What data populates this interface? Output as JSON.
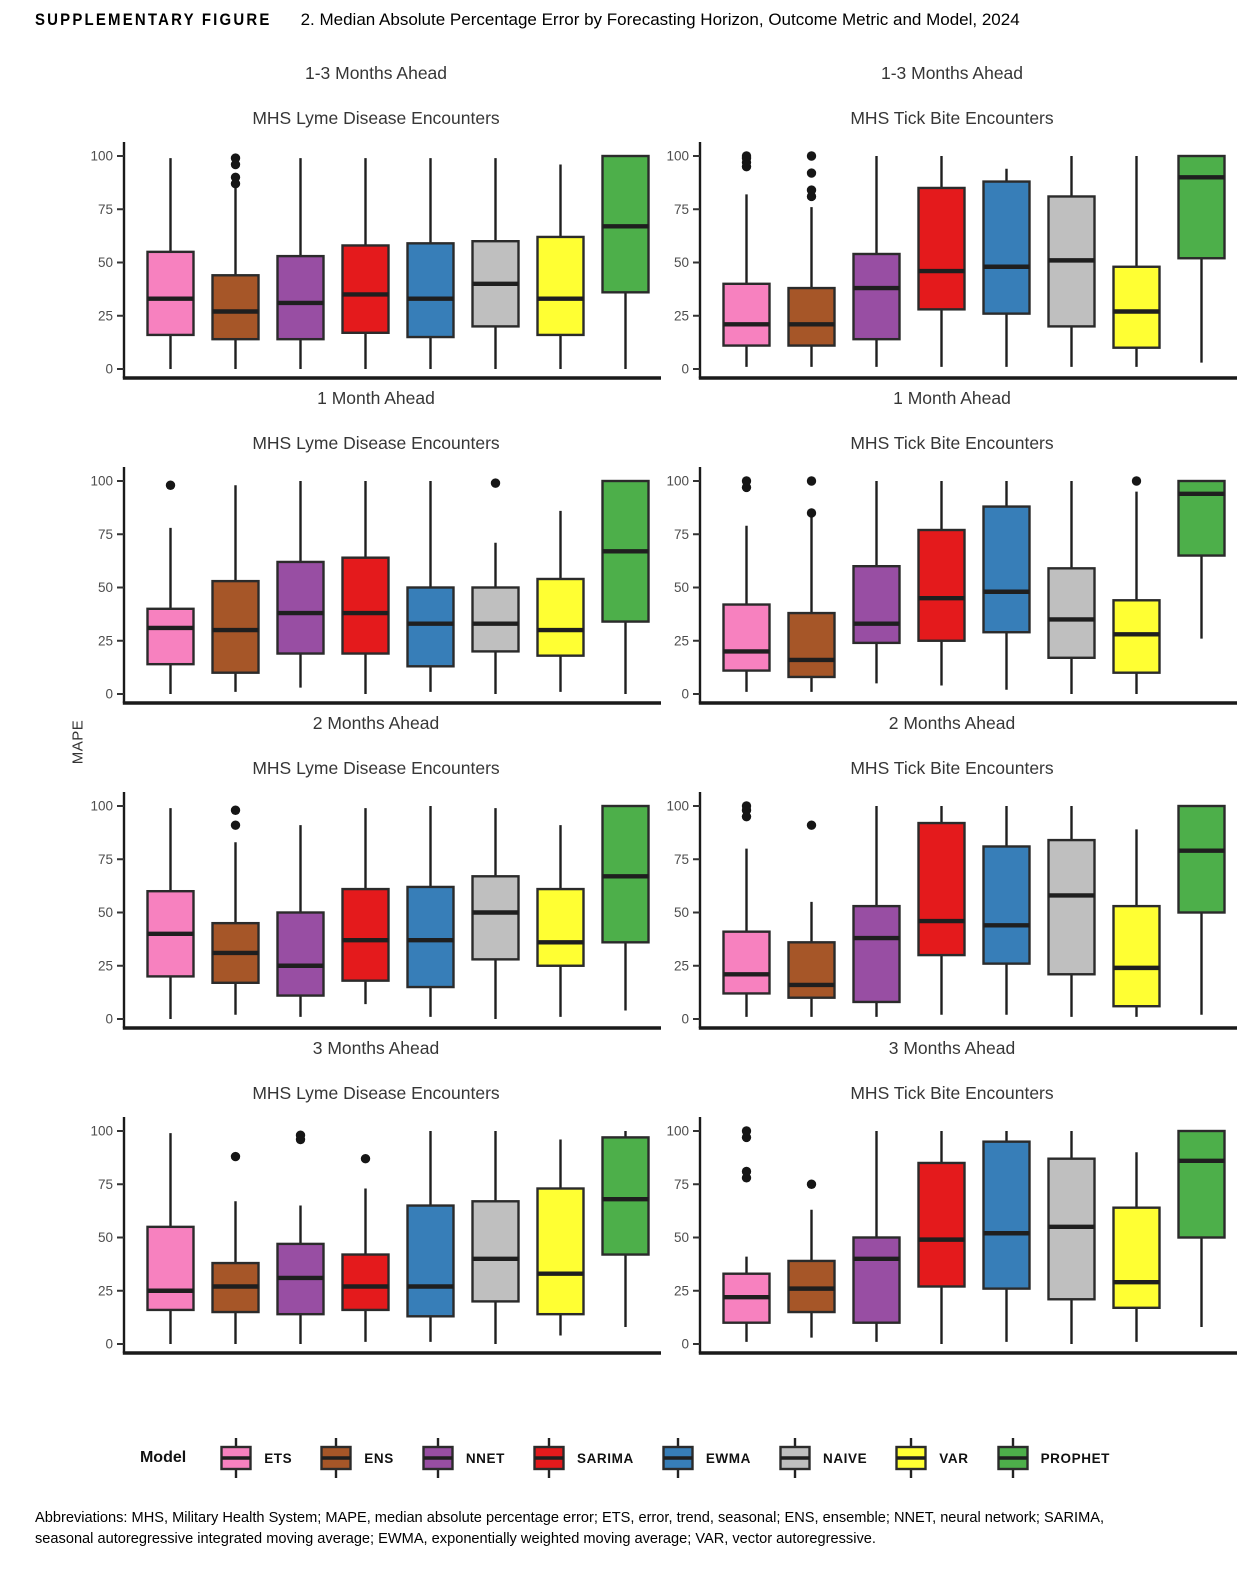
{
  "figure_title": {
    "label": "SUPPLEMENTARY FIGURE",
    "number": "2.",
    "text": "Median Absolute Percentage Error by Forecasting Horizon, Outcome Metric and Model, 2024"
  },
  "y_axis_label": "MAPE",
  "legend": {
    "title": "Model",
    "models": [
      {
        "name": "ETS",
        "color": "#F781BF"
      },
      {
        "name": "ENS",
        "color": "#A65628"
      },
      {
        "name": "NNET",
        "color": "#984EA3"
      },
      {
        "name": "SARIMA",
        "color": "#E41A1C"
      },
      {
        "name": "EWMA",
        "color": "#377EB8"
      },
      {
        "name": "NAIVE",
        "color": "#BFBFBF"
      },
      {
        "name": "VAR",
        "color": "#FFFF33"
      },
      {
        "name": "PROPHET",
        "color": "#4DAF4A"
      }
    ]
  },
  "footnote": {
    "line1": "Abbreviations: MHS, Military Health System; MAPE, median absolute percentage error; ETS, error, trend, seasonal; ENS, ensemble; NNET, neural network; SARIMA,",
    "line2": "seasonal autoregressive integrated moving average; EWMA, exponentially weighted moving average; VAR, vector autoregressive."
  },
  "chart_data": [
    {
      "type": "box",
      "horizon": "1-3 Months Ahead",
      "metric": "MHS Lyme Disease Encounters",
      "ylabel": "MAPE",
      "ylim": [
        0,
        100
      ],
      "yticks": [
        0,
        25,
        50,
        75,
        100
      ],
      "boxes": [
        {
          "model": "ETS",
          "whislo": 0,
          "q1": 16,
          "med": 33,
          "q3": 55,
          "whishi": 99,
          "outliers": []
        },
        {
          "model": "ENS",
          "whislo": 0,
          "q1": 14,
          "med": 27,
          "q3": 44,
          "whishi": 85,
          "outliers": [
            87,
            90,
            96,
            99
          ]
        },
        {
          "model": "NNET",
          "whislo": 0,
          "q1": 14,
          "med": 31,
          "q3": 53,
          "whishi": 99,
          "outliers": []
        },
        {
          "model": "SARIMA",
          "whislo": 0,
          "q1": 17,
          "med": 35,
          "q3": 58,
          "whishi": 99,
          "outliers": []
        },
        {
          "model": "EWMA",
          "whislo": 0,
          "q1": 15,
          "med": 33,
          "q3": 59,
          "whishi": 99,
          "outliers": []
        },
        {
          "model": "NAIVE",
          "whislo": 0,
          "q1": 20,
          "med": 40,
          "q3": 60,
          "whishi": 99,
          "outliers": []
        },
        {
          "model": "VAR",
          "whislo": 0,
          "q1": 16,
          "med": 33,
          "q3": 62,
          "whishi": 96,
          "outliers": []
        },
        {
          "model": "PROPHET",
          "whislo": 0,
          "q1": 36,
          "med": 67,
          "q3": 100,
          "whishi": 100,
          "outliers": []
        }
      ]
    },
    {
      "type": "box",
      "horizon": "1-3 Months Ahead",
      "metric": "MHS Tick Bite Encounters",
      "ylabel": "MAPE",
      "ylim": [
        0,
        100
      ],
      "yticks": [
        0,
        25,
        50,
        75,
        100
      ],
      "boxes": [
        {
          "model": "ETS",
          "whislo": 1,
          "q1": 11,
          "med": 21,
          "q3": 40,
          "whishi": 82,
          "outliers": [
            95,
            97,
            99,
            100
          ]
        },
        {
          "model": "ENS",
          "whislo": 1,
          "q1": 11,
          "med": 21,
          "q3": 38,
          "whishi": 76,
          "outliers": [
            81,
            84,
            92,
            100
          ]
        },
        {
          "model": "NNET",
          "whislo": 1,
          "q1": 14,
          "med": 38,
          "q3": 54,
          "whishi": 100,
          "outliers": []
        },
        {
          "model": "SARIMA",
          "whislo": 1,
          "q1": 28,
          "med": 46,
          "q3": 85,
          "whishi": 100,
          "outliers": []
        },
        {
          "model": "EWMA",
          "whislo": 1,
          "q1": 26,
          "med": 48,
          "q3": 88,
          "whishi": 94,
          "outliers": []
        },
        {
          "model": "NAIVE",
          "whislo": 1,
          "q1": 20,
          "med": 51,
          "q3": 81,
          "whishi": 100,
          "outliers": []
        },
        {
          "model": "VAR",
          "whislo": 1,
          "q1": 10,
          "med": 27,
          "q3": 48,
          "whishi": 100,
          "outliers": []
        },
        {
          "model": "PROPHET",
          "whislo": 3,
          "q1": 52,
          "med": 90,
          "q3": 100,
          "whishi": 100,
          "outliers": []
        }
      ]
    },
    {
      "type": "box",
      "horizon": "1 Month Ahead",
      "metric": "MHS Lyme Disease Encounters",
      "ylabel": "MAPE",
      "ylim": [
        0,
        100
      ],
      "yticks": [
        0,
        25,
        50,
        75,
        100
      ],
      "boxes": [
        {
          "model": "ETS",
          "whislo": 0,
          "q1": 14,
          "med": 31,
          "q3": 40,
          "whishi": 78,
          "outliers": [
            98
          ]
        },
        {
          "model": "ENS",
          "whislo": 1,
          "q1": 10,
          "med": 30,
          "q3": 53,
          "whishi": 98,
          "outliers": []
        },
        {
          "model": "NNET",
          "whislo": 3,
          "q1": 19,
          "med": 38,
          "q3": 62,
          "whishi": 100,
          "outliers": []
        },
        {
          "model": "SARIMA",
          "whislo": 0,
          "q1": 19,
          "med": 38,
          "q3": 64,
          "whishi": 100,
          "outliers": []
        },
        {
          "model": "EWMA",
          "whislo": 1,
          "q1": 13,
          "med": 33,
          "q3": 50,
          "whishi": 100,
          "outliers": []
        },
        {
          "model": "NAIVE",
          "whislo": 0,
          "q1": 20,
          "med": 33,
          "q3": 50,
          "whishi": 71,
          "outliers": [
            99
          ]
        },
        {
          "model": "VAR",
          "whislo": 1,
          "q1": 18,
          "med": 30,
          "q3": 54,
          "whishi": 86,
          "outliers": []
        },
        {
          "model": "PROPHET",
          "whislo": 0,
          "q1": 34,
          "med": 67,
          "q3": 100,
          "whishi": 100,
          "outliers": []
        }
      ]
    },
    {
      "type": "box",
      "horizon": "1 Month Ahead",
      "metric": "MHS Tick Bite Encounters",
      "ylabel": "MAPE",
      "ylim": [
        0,
        100
      ],
      "yticks": [
        0,
        25,
        50,
        75,
        100
      ],
      "boxes": [
        {
          "model": "ETS",
          "whislo": 1,
          "q1": 11,
          "med": 20,
          "q3": 42,
          "whishi": 79,
          "outliers": [
            97,
            100
          ]
        },
        {
          "model": "ENS",
          "whislo": 1,
          "q1": 8,
          "med": 16,
          "q3": 38,
          "whishi": 83,
          "outliers": [
            85,
            100
          ]
        },
        {
          "model": "NNET",
          "whislo": 5,
          "q1": 24,
          "med": 33,
          "q3": 60,
          "whishi": 100,
          "outliers": []
        },
        {
          "model": "SARIMA",
          "whislo": 4,
          "q1": 25,
          "med": 45,
          "q3": 77,
          "whishi": 100,
          "outliers": []
        },
        {
          "model": "EWMA",
          "whislo": 2,
          "q1": 29,
          "med": 48,
          "q3": 88,
          "whishi": 100,
          "outliers": []
        },
        {
          "model": "NAIVE",
          "whislo": 0,
          "q1": 17,
          "med": 35,
          "q3": 59,
          "whishi": 100,
          "outliers": []
        },
        {
          "model": "VAR",
          "whislo": 0,
          "q1": 10,
          "med": 28,
          "q3": 44,
          "whishi": 95,
          "outliers": [
            100
          ]
        },
        {
          "model": "PROPHET",
          "whislo": 26,
          "q1": 65,
          "med": 94,
          "q3": 100,
          "whishi": 100,
          "outliers": []
        }
      ]
    },
    {
      "type": "box",
      "horizon": "2 Months Ahead",
      "metric": "MHS Lyme Disease Encounters",
      "ylabel": "MAPE",
      "ylim": [
        0,
        100
      ],
      "yticks": [
        0,
        25,
        50,
        75,
        100
      ],
      "boxes": [
        {
          "model": "ETS",
          "whislo": 0,
          "q1": 20,
          "med": 40,
          "q3": 60,
          "whishi": 99,
          "outliers": []
        },
        {
          "model": "ENS",
          "whislo": 2,
          "q1": 17,
          "med": 31,
          "q3": 45,
          "whishi": 83,
          "outliers": [
            91,
            98
          ]
        },
        {
          "model": "NNET",
          "whislo": 1,
          "q1": 11,
          "med": 25,
          "q3": 50,
          "whishi": 91,
          "outliers": []
        },
        {
          "model": "SARIMA",
          "whislo": 7,
          "q1": 18,
          "med": 37,
          "q3": 61,
          "whishi": 99,
          "outliers": []
        },
        {
          "model": "EWMA",
          "whislo": 1,
          "q1": 15,
          "med": 37,
          "q3": 62,
          "whishi": 100,
          "outliers": []
        },
        {
          "model": "NAIVE",
          "whislo": 0,
          "q1": 28,
          "med": 50,
          "q3": 67,
          "whishi": 99,
          "outliers": []
        },
        {
          "model": "VAR",
          "whislo": 1,
          "q1": 25,
          "med": 36,
          "q3": 61,
          "whishi": 91,
          "outliers": []
        },
        {
          "model": "PROPHET",
          "whislo": 4,
          "q1": 36,
          "med": 67,
          "q3": 100,
          "whishi": 100,
          "outliers": []
        }
      ]
    },
    {
      "type": "box",
      "horizon": "2 Months Ahead",
      "metric": "MHS Tick Bite Encounters",
      "ylabel": "MAPE",
      "ylim": [
        0,
        100
      ],
      "yticks": [
        0,
        25,
        50,
        75,
        100
      ],
      "boxes": [
        {
          "model": "ETS",
          "whislo": 1,
          "q1": 12,
          "med": 21,
          "q3": 41,
          "whishi": 80,
          "outliers": [
            95,
            98,
            100
          ]
        },
        {
          "model": "ENS",
          "whislo": 1,
          "q1": 10,
          "med": 16,
          "q3": 36,
          "whishi": 55,
          "outliers": [
            91
          ]
        },
        {
          "model": "NNET",
          "whislo": 1,
          "q1": 8,
          "med": 38,
          "q3": 53,
          "whishi": 100,
          "outliers": []
        },
        {
          "model": "SARIMA",
          "whislo": 2,
          "q1": 30,
          "med": 46,
          "q3": 92,
          "whishi": 100,
          "outliers": []
        },
        {
          "model": "EWMA",
          "whislo": 2,
          "q1": 26,
          "med": 44,
          "q3": 81,
          "whishi": 100,
          "outliers": []
        },
        {
          "model": "NAIVE",
          "whislo": 1,
          "q1": 21,
          "med": 58,
          "q3": 84,
          "whishi": 100,
          "outliers": []
        },
        {
          "model": "VAR",
          "whislo": 1,
          "q1": 6,
          "med": 24,
          "q3": 53,
          "whishi": 89,
          "outliers": []
        },
        {
          "model": "PROPHET",
          "whislo": 2,
          "q1": 50,
          "med": 79,
          "q3": 100,
          "whishi": 100,
          "outliers": []
        }
      ]
    },
    {
      "type": "box",
      "horizon": "3 Months Ahead",
      "metric": "MHS Lyme Disease Encounters",
      "ylabel": "MAPE",
      "ylim": [
        0,
        100
      ],
      "yticks": [
        0,
        25,
        50,
        75,
        100
      ],
      "boxes": [
        {
          "model": "ETS",
          "whislo": 0,
          "q1": 16,
          "med": 25,
          "q3": 55,
          "whishi": 99,
          "outliers": []
        },
        {
          "model": "ENS",
          "whislo": 0,
          "q1": 15,
          "med": 27,
          "q3": 38,
          "whishi": 67,
          "outliers": [
            88
          ]
        },
        {
          "model": "NNET",
          "whislo": 0,
          "q1": 14,
          "med": 31,
          "q3": 47,
          "whishi": 65,
          "outliers": [
            96,
            98
          ]
        },
        {
          "model": "SARIMA",
          "whislo": 1,
          "q1": 16,
          "med": 27,
          "q3": 42,
          "whishi": 73,
          "outliers": [
            87
          ]
        },
        {
          "model": "EWMA",
          "whislo": 1,
          "q1": 13,
          "med": 27,
          "q3": 65,
          "whishi": 100,
          "outliers": []
        },
        {
          "model": "NAIVE",
          "whislo": 0,
          "q1": 20,
          "med": 40,
          "q3": 67,
          "whishi": 100,
          "outliers": []
        },
        {
          "model": "VAR",
          "whislo": 4,
          "q1": 14,
          "med": 33,
          "q3": 73,
          "whishi": 96,
          "outliers": []
        },
        {
          "model": "PROPHET",
          "whislo": 8,
          "q1": 42,
          "med": 68,
          "q3": 97,
          "whishi": 100,
          "outliers": []
        }
      ]
    },
    {
      "type": "box",
      "horizon": "3 Months Ahead",
      "metric": "MHS Tick Bite Encounters",
      "ylabel": "MAPE",
      "ylim": [
        0,
        100
      ],
      "yticks": [
        0,
        25,
        50,
        75,
        100
      ],
      "boxes": [
        {
          "model": "ETS",
          "whislo": 1,
          "q1": 10,
          "med": 22,
          "q3": 33,
          "whishi": 41,
          "outliers": [
            78,
            81,
            97,
            100
          ]
        },
        {
          "model": "ENS",
          "whislo": 3,
          "q1": 15,
          "med": 26,
          "q3": 39,
          "whishi": 63,
          "outliers": [
            75
          ]
        },
        {
          "model": "NNET",
          "whislo": 1,
          "q1": 10,
          "med": 40,
          "q3": 50,
          "whishi": 100,
          "outliers": []
        },
        {
          "model": "SARIMA",
          "whislo": 0,
          "q1": 27,
          "med": 49,
          "q3": 85,
          "whishi": 100,
          "outliers": []
        },
        {
          "model": "EWMA",
          "whislo": 1,
          "q1": 26,
          "med": 52,
          "q3": 95,
          "whishi": 100,
          "outliers": []
        },
        {
          "model": "NAIVE",
          "whislo": 0,
          "q1": 21,
          "med": 55,
          "q3": 87,
          "whishi": 100,
          "outliers": []
        },
        {
          "model": "VAR",
          "whislo": 1,
          "q1": 17,
          "med": 29,
          "q3": 64,
          "whishi": 90,
          "outliers": []
        },
        {
          "model": "PROPHET",
          "whislo": 8,
          "q1": 50,
          "med": 86,
          "q3": 100,
          "whishi": 100,
          "outliers": []
        }
      ]
    }
  ]
}
